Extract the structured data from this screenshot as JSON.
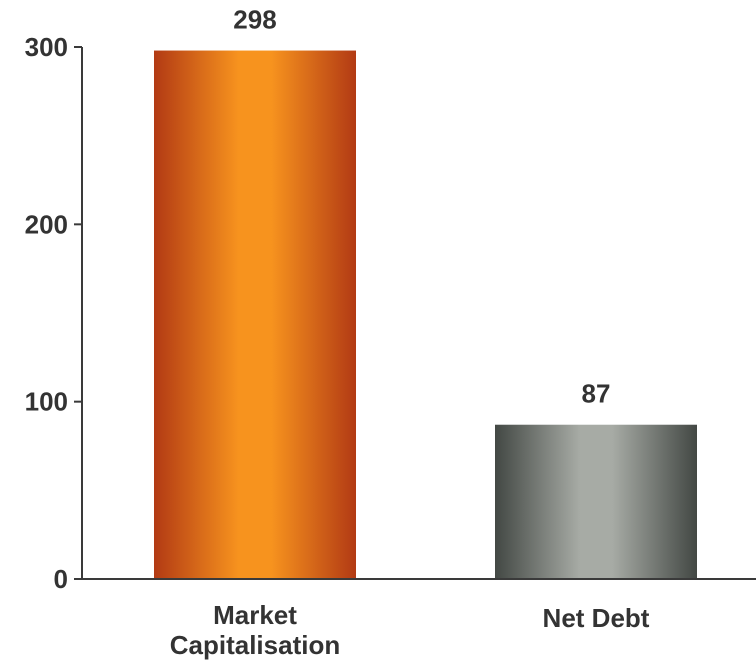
{
  "chart_data": {
    "type": "bar",
    "title": "",
    "xlabel": "",
    "ylabel": "",
    "ylim": [
      0,
      300
    ],
    "y_ticks": [
      0,
      100,
      200,
      300
    ],
    "grid": false,
    "categories": [
      [
        "Market",
        "Capitalisation"
      ],
      [
        "Net Debt"
      ]
    ],
    "values": [
      298,
      87
    ],
    "data_labels": [
      "298",
      "87"
    ],
    "colors": [
      {
        "edge": "#b23a14",
        "mid": "#f7931e"
      },
      {
        "edge": "#434844",
        "mid": "#a7aba5"
      }
    ]
  }
}
